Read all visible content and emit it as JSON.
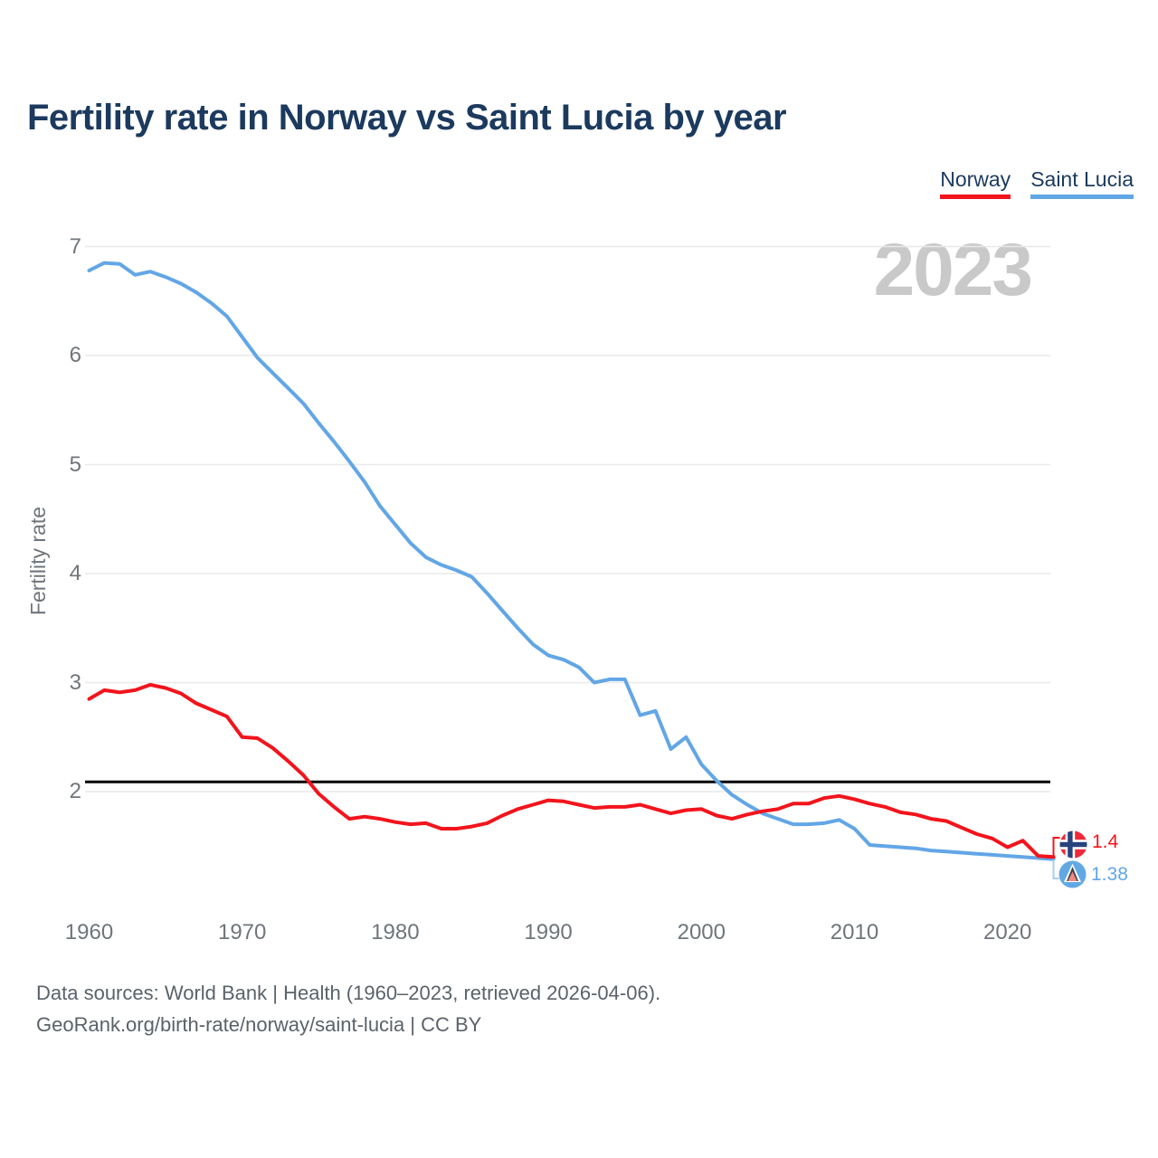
{
  "title": "Fertility rate in Norway vs Saint Lucia by year",
  "legend": [
    {
      "label": "Norway",
      "color": "#f2141c"
    },
    {
      "label": "Saint Lucia",
      "color": "#62a6e6"
    }
  ],
  "watermark": "2023",
  "y_axis": {
    "label": "Fertility rate",
    "ticks": [
      7,
      6,
      5,
      4,
      3,
      2
    ]
  },
  "x_axis": {
    "ticks": [
      1960,
      1970,
      1980,
      1990,
      2000,
      2010,
      2020
    ]
  },
  "reference_line": {
    "value": 2.09,
    "color": "#000000"
  },
  "end_labels": [
    {
      "series": "Norway",
      "value_label": "1.4"
    },
    {
      "series": "Saint Lucia",
      "value_label": "1.38"
    }
  ],
  "footer": {
    "line1": "Data sources: World Bank | Health (1960–2023, retrieved 2026-04-06).",
    "line2": "GeoRank.org/birth-rate/norway/saint-lucia | CC BY"
  },
  "chart_data": {
    "type": "line",
    "title": "Fertility rate in Norway vs Saint Lucia by year",
    "xlabel": "",
    "ylabel": "Fertility rate",
    "x_range": [
      1960,
      2023
    ],
    "ylim": [
      1.0,
      7.25
    ],
    "grid": "horizontal",
    "legend_position": "top-right",
    "year_badge": "2023",
    "reference_line": 2.09,
    "years": [
      1960,
      1961,
      1962,
      1963,
      1964,
      1965,
      1966,
      1967,
      1968,
      1969,
      1970,
      1971,
      1972,
      1973,
      1974,
      1975,
      1976,
      1977,
      1978,
      1979,
      1980,
      1981,
      1982,
      1983,
      1984,
      1985,
      1986,
      1987,
      1988,
      1989,
      1990,
      1991,
      1992,
      1993,
      1994,
      1995,
      1996,
      1997,
      1998,
      1999,
      2000,
      2001,
      2002,
      2003,
      2004,
      2005,
      2006,
      2007,
      2008,
      2009,
      2010,
      2011,
      2012,
      2013,
      2014,
      2015,
      2016,
      2017,
      2018,
      2019,
      2020,
      2021,
      2022,
      2023
    ],
    "series": [
      {
        "name": "Norway",
        "color": "#f2141c",
        "final_value": 1.4,
        "values": [
          2.85,
          2.93,
          2.91,
          2.93,
          2.98,
          2.95,
          2.9,
          2.81,
          2.75,
          2.69,
          2.5,
          2.49,
          2.4,
          2.28,
          2.15,
          1.98,
          1.86,
          1.75,
          1.77,
          1.75,
          1.72,
          1.7,
          1.71,
          1.66,
          1.66,
          1.68,
          1.71,
          1.78,
          1.84,
          1.88,
          1.92,
          1.91,
          1.88,
          1.85,
          1.86,
          1.86,
          1.88,
          1.84,
          1.8,
          1.83,
          1.84,
          1.78,
          1.75,
          1.79,
          1.82,
          1.84,
          1.89,
          1.89,
          1.94,
          1.96,
          1.93,
          1.89,
          1.86,
          1.81,
          1.79,
          1.75,
          1.73,
          1.67,
          1.61,
          1.57,
          1.49,
          1.55,
          1.41,
          1.4
        ]
      },
      {
        "name": "Saint Lucia",
        "color": "#62a6e6",
        "final_value": 1.38,
        "values": [
          6.78,
          6.85,
          6.84,
          6.74,
          6.77,
          6.72,
          6.66,
          6.58,
          6.48,
          6.36,
          6.17,
          5.98,
          5.84,
          5.7,
          5.56,
          5.38,
          5.21,
          5.03,
          4.84,
          4.62,
          4.45,
          4.28,
          4.15,
          4.08,
          4.03,
          3.97,
          3.82,
          3.66,
          3.5,
          3.35,
          3.25,
          3.21,
          3.14,
          3.0,
          3.03,
          3.03,
          2.7,
          2.74,
          2.39,
          2.5,
          2.25,
          2.1,
          1.97,
          1.88,
          1.8,
          1.75,
          1.7,
          1.7,
          1.71,
          1.74,
          1.66,
          1.51,
          1.5,
          1.49,
          1.48,
          1.46,
          1.45,
          1.44,
          1.43,
          1.42,
          1.41,
          1.4,
          1.39,
          1.38
        ]
      }
    ]
  }
}
